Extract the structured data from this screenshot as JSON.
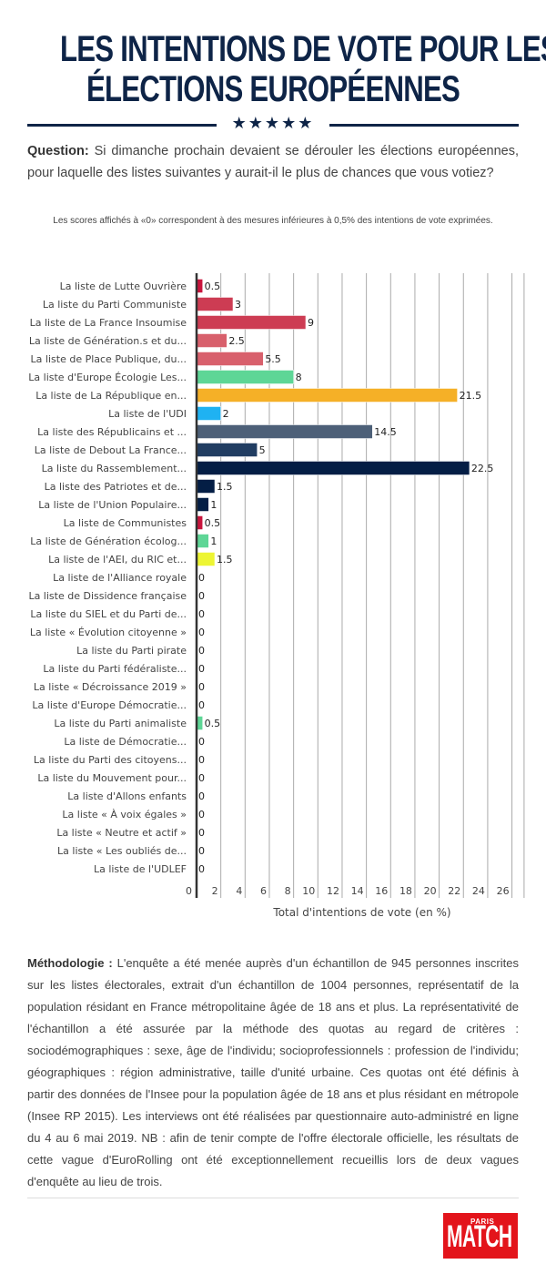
{
  "header": {
    "title_line1": "LES INTENTIONS DE VOTE POUR LES",
    "title_line2": "ÉLECTIONS EUROPÉENNES",
    "stars": "★★★★★"
  },
  "question": {
    "label": "Question:",
    "text": " Si dimanche prochain devaient se dérouler les élections européennes, pour laquelle des listes suivantes y aurait-il le plus de chances que vous votiez?"
  },
  "note": "Les scores affichés à «0» correspondent à des mesures inférieures à 0,5% des intentions de vote exprimées.",
  "chart_data": {
    "type": "bar",
    "orientation": "horizontal",
    "title": "",
    "xlabel": "Total d'intentions de vote (en %)",
    "ylabel": "",
    "xlim": [
      0,
      27
    ],
    "xticks": [
      0,
      2,
      4,
      6,
      8,
      10,
      12,
      14,
      16,
      18,
      20,
      22,
      24,
      26
    ],
    "grid": true,
    "data_labels": true,
    "categories": [
      "La liste de Lutte Ouvrière",
      "La liste du Parti Communiste",
      "La liste de La France Insoumise",
      "La liste de Génération.s et du...",
      "La liste de Place Publique, du...",
      "La liste d'Europe Écologie Les...",
      "La liste de La République en...",
      "La liste de l'UDI",
      "La liste des Républicains et ...",
      "La liste de Debout La France...",
      "La liste du Rassemblement...",
      "La liste des Patriotes et de...",
      "La liste de l'Union Populaire...",
      "La liste de Communistes",
      "La liste de Génération écolog...",
      "La liste de l'AEI, du RIC et...",
      "La liste de l'Alliance royale",
      "La liste de Dissidence française",
      "La liste du SIEL et du Parti de...",
      "La liste « Évolution citoyenne »",
      "La liste du Parti pirate",
      "La liste du Parti fédéraliste...",
      "La liste « Décroissance 2019 »",
      "La liste d'Europe Démocratie...",
      "La liste du Parti animaliste",
      "La liste de Démocratie...",
      "La liste du Parti des citoyens...",
      "La liste du Mouvement pour...",
      "La liste d'Allons enfants",
      "La liste « À voix égales »",
      "La liste « Neutre et actif »",
      "La liste « Les oubliés de...",
      "La liste de l'UDLEF"
    ],
    "values": [
      0.5,
      3,
      9,
      2.5,
      5.5,
      8,
      21.5,
      2,
      14.5,
      5,
      22.5,
      1.5,
      1,
      0.5,
      1,
      1.5,
      0,
      0,
      0,
      0,
      0,
      0,
      0,
      0,
      0.5,
      0,
      0,
      0,
      0,
      0,
      0,
      0,
      0
    ],
    "value_labels": [
      "0.5",
      "3",
      "9",
      "2.5",
      "5.5",
      "8",
      "21.5",
      "2",
      "14.5",
      "5",
      "22.5",
      "1.5",
      "1",
      "0.5",
      "1",
      "1.5",
      "0",
      "0",
      "0",
      "0",
      "0",
      "0",
      "0",
      "0",
      "0.5",
      "0",
      "0",
      "0",
      "0",
      "0",
      "0",
      "0",
      "0"
    ],
    "colors": [
      "#c8143c",
      "#cd3c53",
      "#cd3c53",
      "#d8606c",
      "#d8606c",
      "#5ed696",
      "#f5b027",
      "#1fb2f2",
      "#4d6078",
      "#213d62",
      "#041e45",
      "#041e45",
      "#041e45",
      "#c8143c",
      "#5ed696",
      "#edf533",
      "#cccccc",
      "#cccccc",
      "#cccccc",
      "#cccccc",
      "#cccccc",
      "#cccccc",
      "#cccccc",
      "#cccccc",
      "#5ed696",
      "#cccccc",
      "#cccccc",
      "#cccccc",
      "#cccccc",
      "#cccccc",
      "#cccccc",
      "#cccccc",
      "#cccccc"
    ]
  },
  "methodology": {
    "label": "Méthodologie :",
    "text": " L'enquête a été menée auprès d'un échantillon de 945 personnes inscrites sur les listes électorales, extrait d'un échantillon de 1004 personnes, représentatif de la population résidant en France métropolitaine âgée de 18 ans et plus. La représentativité de l'échantillon a été assurée par la méthode des quotas au regard de critères : sociodémographiques : sexe, âge de l'individu; socioprofessionnels : profession de l'individu; géographiques : région administrative, taille d'unité urbaine. Ces quotas ont été définis à partir des données de l'Insee pour la population âgée de 18 ans et plus résidant en métropole (Insee RP 2015). Les interviews ont été réalisées par questionnaire auto-administré en ligne du 4 au 6 mai 2019. NB : afin de tenir compte de l'offre électorale officielle, les résultats de cette vague d'EuroRolling ont été exceptionnellement recueillis lors de deux vagues d'enquête au lieu de trois."
  },
  "logo": {
    "top": "PARIS",
    "main": "MATCH"
  }
}
